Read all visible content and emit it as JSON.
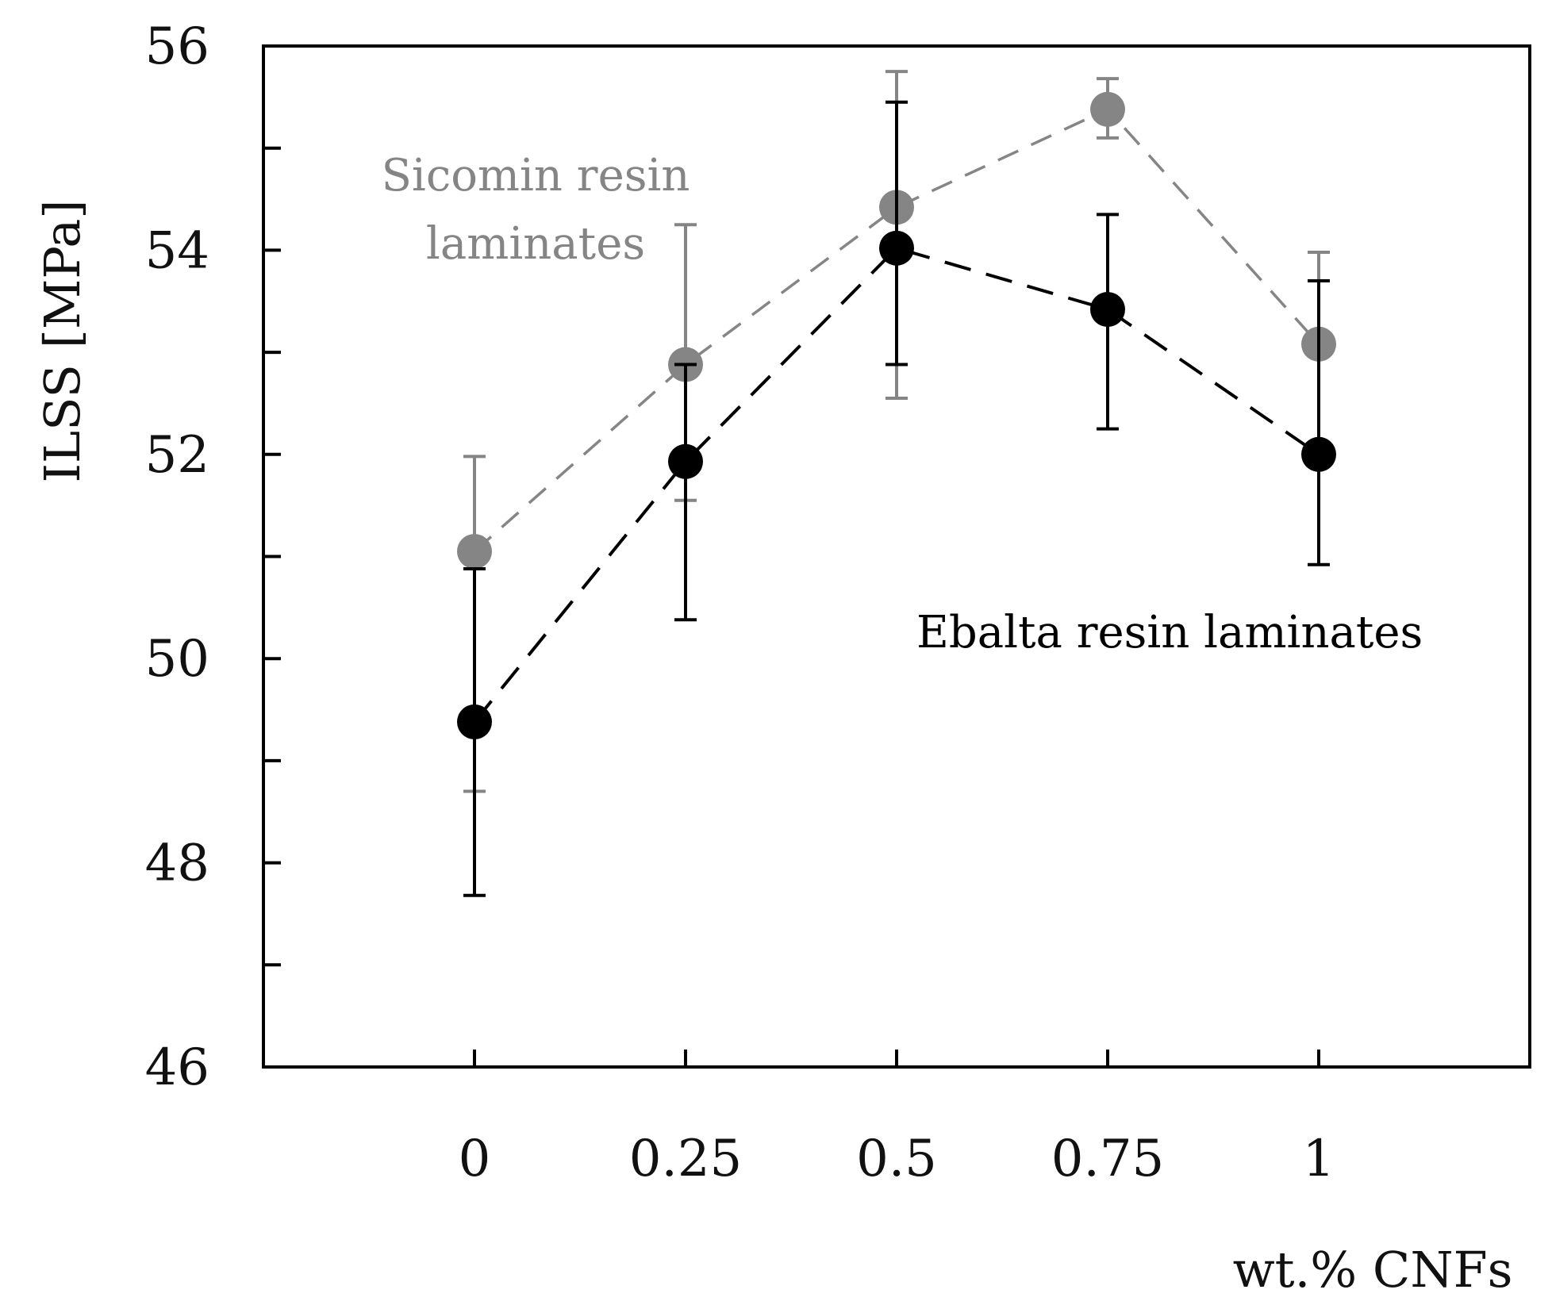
{
  "chart_data": {
    "type": "line",
    "title": "",
    "xlabel": "wt.% CNFs",
    "ylabel": "ILSS [MPa]",
    "x": [
      0,
      0.25,
      0.5,
      0.75,
      1
    ],
    "xlim": [
      -0.25,
      1.25
    ],
    "ylim": [
      46,
      56
    ],
    "yticks": [
      46,
      48,
      50,
      52,
      54,
      56
    ],
    "yminor_ticks": [
      47,
      49,
      51,
      53,
      55
    ],
    "xtick_labels": [
      "0",
      "0.25",
      "0.5",
      "0.75",
      "1"
    ],
    "ytick_labels": [
      "46",
      "48",
      "50",
      "52",
      "54",
      "56"
    ],
    "grid": false,
    "series": [
      {
        "name": "Sicomin resin laminates",
        "color": "#858585",
        "marker": "circle",
        "line_style": "dashed",
        "values": [
          51.05,
          52.88,
          54.42,
          55.38,
          53.08
        ],
        "error_low": [
          48.7,
          51.55,
          52.55,
          55.1,
          52.08
        ],
        "error_high": [
          51.98,
          54.25,
          55.75,
          55.68,
          53.98
        ]
      },
      {
        "name": "Ebalta resin laminates",
        "color": "#000000",
        "marker": "circle",
        "line_style": "dashed",
        "values": [
          49.38,
          51.93,
          54.02,
          53.42,
          52.0
        ],
        "error_low": [
          47.68,
          50.38,
          52.88,
          52.25,
          50.92
        ],
        "error_high": [
          50.88,
          52.88,
          55.45,
          54.35,
          53.7
        ]
      }
    ],
    "annotations": [
      {
        "series": "Sicomin resin laminates",
        "lines": [
          "Sicomin resin",
          "laminates"
        ],
        "color": "#858585"
      },
      {
        "series": "Ebalta resin laminates",
        "lines": [
          "Ebalta resin laminates"
        ],
        "color": "#000000"
      }
    ]
  }
}
